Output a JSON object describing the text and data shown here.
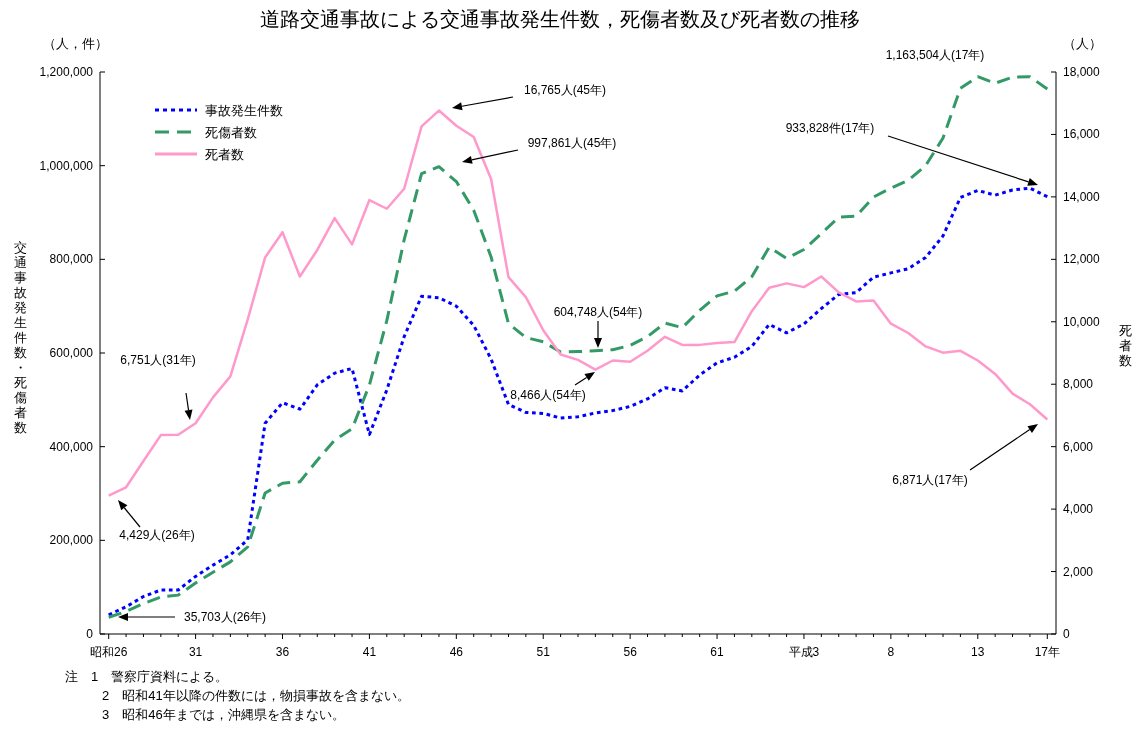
{
  "chart_data": {
    "type": "line",
    "title": "道路交通事故による交通事故発生件数，死傷者数及び死者数の推移",
    "ylabel": "交通事故発生件数・死傷者数",
    "y2label": "死者数",
    "categories": [
      "昭和26",
      null,
      null,
      null,
      null,
      "31",
      null,
      null,
      null,
      null,
      "36",
      null,
      null,
      null,
      null,
      "41",
      null,
      null,
      null,
      null,
      "46",
      null,
      null,
      null,
      null,
      "51",
      null,
      null,
      null,
      null,
      "56",
      null,
      null,
      null,
      null,
      "61",
      null,
      null,
      null,
      null,
      "平成3",
      null,
      null,
      null,
      null,
      "8",
      null,
      null,
      null,
      null,
      "13",
      null,
      null,
      null,
      "17年"
    ],
    "ylim": [
      0,
      1200000
    ],
    "yticks": [
      0,
      {
        "value": 200000,
        "label": "200,000"
      },
      {
        "value": 400000,
        "label": "400,000"
      },
      {
        "value": 600000,
        "label": "600,000"
      },
      {
        "value": 800000,
        "label": "800,000"
      },
      {
        "value": 1000000,
        "label": "1,000,000"
      },
      {
        "value": 1200000,
        "label": "1,200,000"
      }
    ],
    "y2lim": [
      0,
      18000
    ],
    "y2ticks": [
      0,
      {
        "value": 2000,
        "label": "2,000"
      },
      {
        "value": 4000,
        "label": "4,000"
      },
      {
        "value": 6000,
        "label": "6,000"
      },
      {
        "value": 8000,
        "label": "8,000"
      },
      {
        "value": 10000,
        "label": "10,000"
      },
      {
        "value": 12000,
        "label": "12,000"
      },
      {
        "value": 14000,
        "label": "14,000"
      },
      {
        "value": 16000,
        "label": "16,000"
      },
      {
        "value": 18000,
        "label": "18,000"
      }
    ],
    "legend": "top left",
    "grid": false,
    "series": [
      {
        "name": "事故発生件数",
        "color": "#0000ff",
        "line_style": "dotted",
        "values": [
          41000,
          58000,
          80000,
          94000,
          94000,
          123000,
          147000,
          169000,
          201000,
          450000,
          494000,
          480000,
          532000,
          557000,
          567000,
          426000,
          521000,
          635000,
          721000,
          718000,
          700000,
          659000,
          587000,
          490000,
          473000,
          471000,
          461000,
          464000,
          472000,
          477000,
          486000,
          502000,
          526000,
          519000,
          553000,
          579000,
          591000,
          614000,
          661000,
          643000,
          662000,
          695000,
          725000,
          729000,
          762000,
          771000,
          780000,
          804000,
          850000,
          932000,
          947000,
          937000,
          948000,
          952000,
          933828
        ]
      },
      {
        "name": "死傷者数",
        "color": "#339966",
        "line_style": "dashed",
        "values": [
          35703,
          48000,
          65000,
          79000,
          83000,
          109000,
          132000,
          154000,
          186000,
          301000,
          322000,
          325000,
          371000,
          414000,
          438000,
          532000,
          669000,
          842000,
          983000,
          997861,
          966000,
          905000,
          805000,
          663000,
          633000,
          624000,
          602000,
          603000,
          604748,
          607000,
          616000,
          635000,
          664000,
          654000,
          691000,
          722000,
          732000,
          763000,
          826000,
          802000,
          821000,
          855000,
          890000,
          892000,
          933000,
          952000,
          969000,
          1000000,
          1059000,
          1165000,
          1190000,
          1176000,
          1189000,
          1190000,
          1163504
        ]
      },
      {
        "name": "死者数",
        "color": "#ff99cc",
        "line_style": "solid",
        "axis": "y2",
        "values": [
          4429,
          4700,
          5540,
          6370,
          6380,
          6751,
          7580,
          8250,
          10080,
          12060,
          12870,
          11450,
          12300,
          13320,
          12480,
          13900,
          13620,
          14260,
          16260,
          16765,
          16280,
          15920,
          14570,
          11430,
          10790,
          9730,
          8950,
          8780,
          8466,
          8760,
          8720,
          9070,
          9520,
          9260,
          9260,
          9320,
          9350,
          10340,
          11090,
          11230,
          11110,
          11450,
          10940,
          10650,
          10680,
          9940,
          9640,
          9210,
          9010,
          9070,
          8760,
          8330,
          7700,
          7360,
          6871
        ]
      }
    ],
    "annotations": [
      "（人，件）",
      "（人）",
      "注　1　警察庁資料による。",
      "2　昭和41年以降の件数には，物損事故を含まない。",
      "3　昭和46年までは，沖縄県を含まない。",
      "16,765人(45年)",
      "997,861人(45年)",
      "933,828件(17年)",
      "1,163,504人(17年)",
      "604,748人(54年)",
      "8,466人(54年)",
      "6,751人(31年)",
      "4,429人(26年)",
      "35,703人(26年)",
      "6,871人(17年)"
    ]
  }
}
